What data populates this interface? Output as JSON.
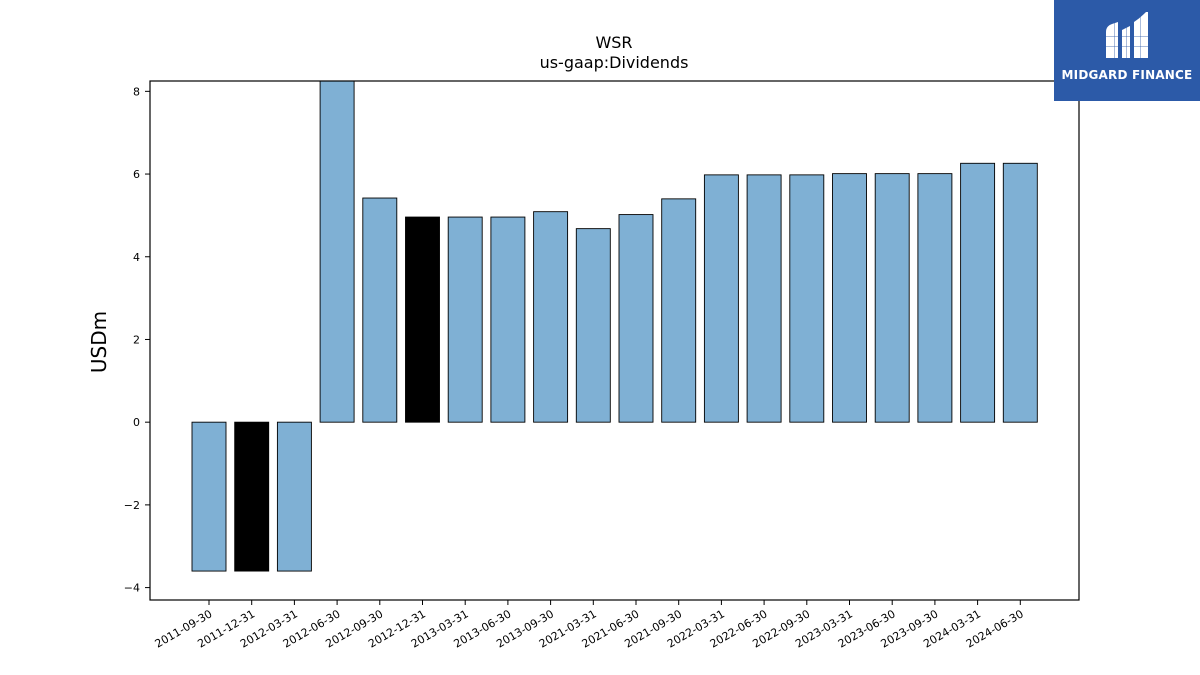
{
  "chart_data": {
    "type": "bar",
    "title": "WSR",
    "subtitle": "us-gaap:Dividends",
    "xlabel": "",
    "ylabel": "USDm",
    "ylim": [
      -4.3,
      8.25
    ],
    "yticks": [
      -4,
      -2,
      0,
      2,
      4,
      6,
      8
    ],
    "grid": false,
    "categories": [
      "2011-09-30",
      "2011-12-31",
      "2012-03-31",
      "2012-06-30",
      "2012-09-30",
      "2012-12-31",
      "2013-03-31",
      "2013-06-30",
      "2013-09-30",
      "2021-03-31",
      "2021-06-30",
      "2021-09-30",
      "2022-03-31",
      "2022-06-30",
      "2022-09-30",
      "2023-03-31",
      "2023-06-30",
      "2023-09-30",
      "2024-03-31",
      "2024-06-30"
    ],
    "values": [
      -3.6,
      -3.6,
      -3.6,
      8.3,
      5.42,
      4.96,
      4.96,
      4.96,
      5.09,
      4.68,
      5.02,
      5.4,
      5.98,
      5.98,
      5.98,
      6.01,
      6.01,
      6.01,
      6.26,
      6.26
    ],
    "highlighted": [
      1,
      5
    ],
    "colors": {
      "bar": "#7fb0d4",
      "highlight": "#000000",
      "edge": "#000000"
    }
  },
  "logo": {
    "text": "MIDGARD FINANCE",
    "background": "#2c5aa8"
  }
}
